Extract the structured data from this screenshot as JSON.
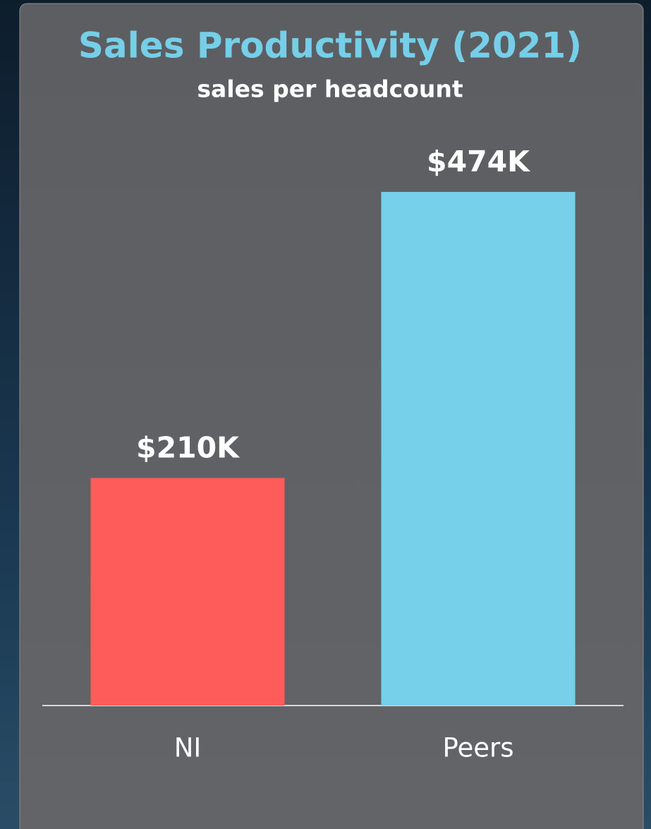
{
  "chart_data": {
    "type": "bar",
    "title": "Sales Productivity (2021)",
    "subtitle": "sales per headcount",
    "categories": [
      "NI",
      "Peers"
    ],
    "values": [
      210,
      474
    ],
    "value_labels": [
      "$210K",
      "$474K"
    ],
    "colors": [
      "#fe5b5b",
      "#76d0ea"
    ]
  }
}
